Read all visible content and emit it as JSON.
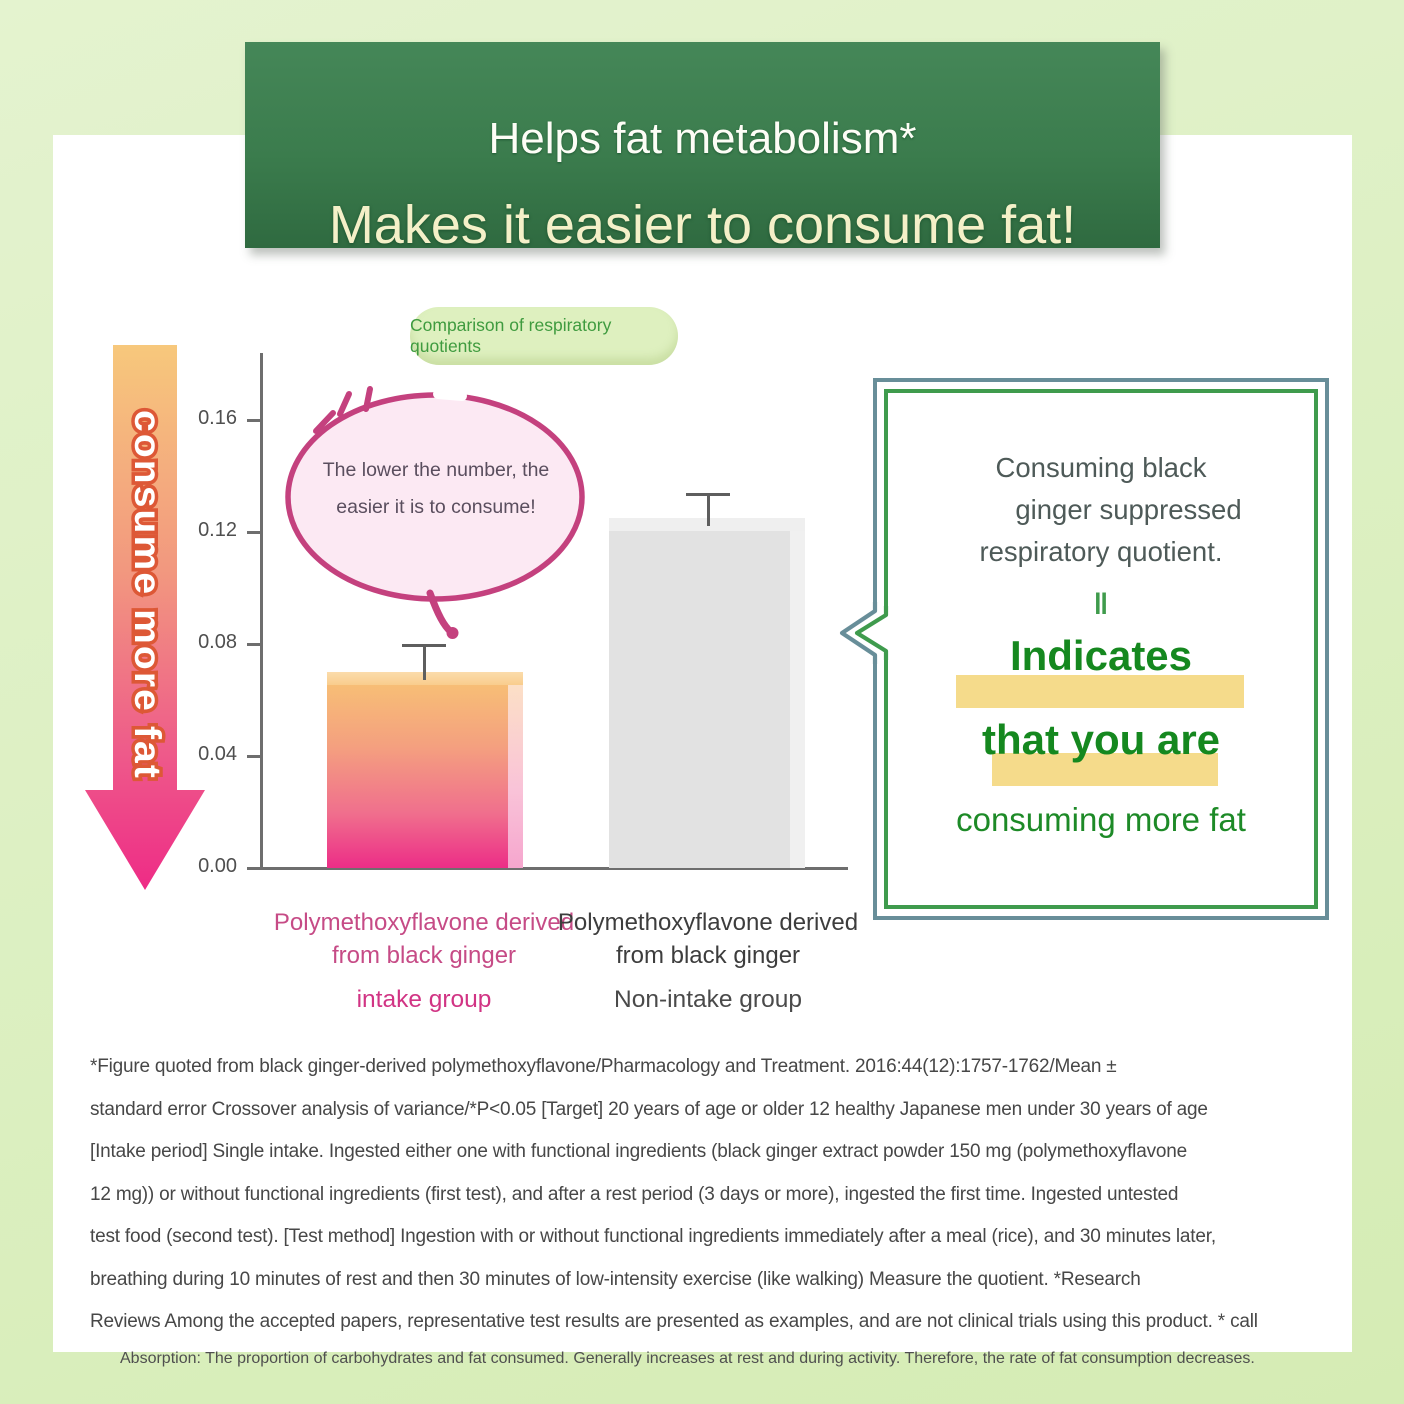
{
  "banner": {
    "line1": "Helps fat metabolism*",
    "line2": "Makes it easier to consume fat!"
  },
  "chart_badge": "Comparison of respiratory quotients",
  "arrow_label": "consume more fat",
  "bubble": {
    "line1": "The lower the number, the",
    "line2": "easier it is to consume!"
  },
  "chart_data": {
    "type": "bar",
    "title": "Comparison of respiratory quotients",
    "categories": [
      "Polymethoxyflavone derived from black ginger intake group",
      "Polymethoxyflavone derived from black ginger Non-intake group"
    ],
    "values": [
      0.07,
      0.125
    ],
    "error_top": [
      0.08,
      0.134
    ],
    "ylim": [
      0,
      0.175
    ],
    "yticks": [
      0,
      0.04,
      0.08,
      0.12,
      0.16
    ],
    "grid": false,
    "bar_colors": [
      "orange-to-pink gradient",
      "#e2e2e2"
    ]
  },
  "x_labels": {
    "intake": {
      "line1": "Polymethoxyflavone derived",
      "line2": "from black ginger",
      "group": "intake group"
    },
    "non_intake": {
      "line1": "Polymethoxyflavone derived",
      "line2": "from black ginger",
      "group": "Non-intake group"
    }
  },
  "callout": {
    "line1": "Consuming black",
    "line2": "ginger suppressed",
    "line3": "respiratory quotient.",
    "equals": "‖",
    "big1": "Indicates",
    "big2": "that you are",
    "big3": "consuming more fat"
  },
  "footnote": {
    "lines": [
      "*Figure quoted from black ginger-derived polymethoxyflavone/Pharmacology and Treatment. 2016:44(12):1757-1762/Mean ±",
      "standard error Crossover analysis of variance/*P<0.05 [Target] 20 years of age or older 12 healthy Japanese men under 30 years of age",
      "[Intake period] Single intake. Ingested either one with functional ingredients (black ginger extract powder 150 mg (polymethoxyflavone",
      "12 mg)) or without functional ingredients (first test), and after a rest period (3 days or more), ingested the first time. Ingested untested",
      "test food (second test). [Test method] Ingestion with or without functional ingredients immediately after a meal (rice), and 30 minutes later,",
      "breathing during 10 minutes of rest and then 30 minutes of low-intensity exercise (like walking) Measure the quotient. *Research",
      "Reviews Among the accepted papers, representative test results are presented as examples, and are not clinical trials using this product. * call"
    ],
    "small": "Absorption: The proportion of carbohydrates and fat consumed. Generally increases at rest and during activity. Therefore, the rate of fat consumption decreases."
  },
  "colors": {
    "frame_green": "#ddf0c3",
    "banner_green": "#3b7c4d",
    "banner_text_cream": "#f4f0c8",
    "pill_bg": "#def0bf",
    "pill_text": "#3f9b3f",
    "bar_gradient_top": "#f8c474",
    "bar_gradient_bottom": "#ec2d87",
    "bar_gray": "#e2e2e2",
    "intake_label_pink": "#c64b86",
    "callout_border_outer": "#688e99",
    "callout_border_inner": "#3f9b4d",
    "callout_green_text": "#15881f",
    "highlight_yellow": "#f5db8b",
    "bubble_stroke": "#c4417e",
    "bubble_fill": "#fce9f3"
  }
}
